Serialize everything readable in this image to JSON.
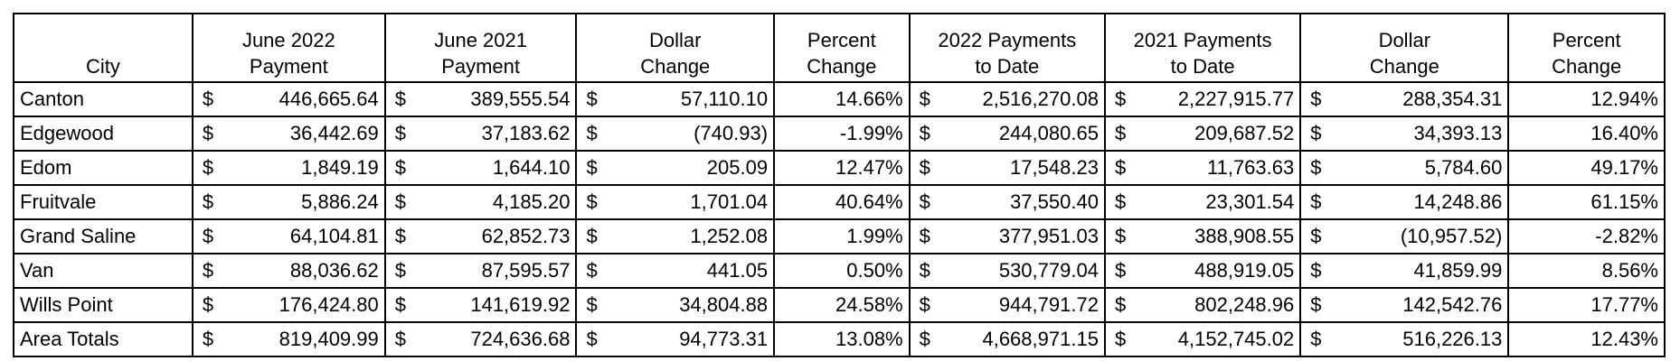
{
  "headers": {
    "city": "City",
    "june_2022": [
      "June 2022",
      "Payment"
    ],
    "june_2021": [
      "June 2021",
      "Payment"
    ],
    "dollar_change_1": [
      "Dollar",
      "Change"
    ],
    "percent_change_1": [
      "Percent",
      "Change"
    ],
    "payments_2022": [
      "2022 Payments",
      "to Date"
    ],
    "payments_2021": [
      "2021 Payments",
      "to Date"
    ],
    "dollar_change_2": [
      "Dollar",
      "Change"
    ],
    "percent_change_2": [
      "Percent",
      "Change"
    ]
  },
  "currency_symbol": "$",
  "rows": [
    {
      "city": "Canton",
      "june_2022": "446,665.64",
      "june_2021": "389,555.54",
      "dollar_change_1": "57,110.10",
      "percent_change_1": "14.66%",
      "payments_2022": "2,516,270.08",
      "payments_2021": "2,227,915.77",
      "dollar_change_2": "288,354.31",
      "percent_change_2": "12.94%"
    },
    {
      "city": "Edgewood",
      "june_2022": "36,442.69",
      "june_2021": "37,183.62",
      "dollar_change_1": "(740.93)",
      "percent_change_1": "-1.99%",
      "payments_2022": "244,080.65",
      "payments_2021": "209,687.52",
      "dollar_change_2": "34,393.13",
      "percent_change_2": "16.40%"
    },
    {
      "city": "Edom",
      "june_2022": "1,849.19",
      "june_2021": "1,644.10",
      "dollar_change_1": "205.09",
      "percent_change_1": "12.47%",
      "payments_2022": "17,548.23",
      "payments_2021": "11,763.63",
      "dollar_change_2": "5,784.60",
      "percent_change_2": "49.17%"
    },
    {
      "city": "Fruitvale",
      "june_2022": "5,886.24",
      "june_2021": "4,185.20",
      "dollar_change_1": "1,701.04",
      "percent_change_1": "40.64%",
      "payments_2022": "37,550.40",
      "payments_2021": "23,301.54",
      "dollar_change_2": "14,248.86",
      "percent_change_2": "61.15%"
    },
    {
      "city": "Grand Saline",
      "june_2022": "64,104.81",
      "june_2021": "62,852.73",
      "dollar_change_1": "1,252.08",
      "percent_change_1": "1.99%",
      "payments_2022": "377,951.03",
      "payments_2021": "388,908.55",
      "dollar_change_2": "(10,957.52)",
      "percent_change_2": "-2.82%"
    },
    {
      "city": "Van",
      "june_2022": "88,036.62",
      "june_2021": "87,595.57",
      "dollar_change_1": "441.05",
      "percent_change_1": "0.50%",
      "payments_2022": "530,779.04",
      "payments_2021": "488,919.05",
      "dollar_change_2": "41,859.99",
      "percent_change_2": "8.56%"
    },
    {
      "city": "Wills Point",
      "june_2022": "176,424.80",
      "june_2021": "141,619.92",
      "dollar_change_1": "34,804.88",
      "percent_change_1": "24.58%",
      "payments_2022": "944,791.72",
      "payments_2021": "802,248.96",
      "dollar_change_2": "142,542.76",
      "percent_change_2": "17.77%"
    },
    {
      "city": "Area Totals",
      "june_2022": "819,409.99",
      "june_2021": "724,636.68",
      "dollar_change_1": "94,773.31",
      "percent_change_1": "13.08%",
      "payments_2022": "4,668,971.15",
      "payments_2021": "4,152,745.02",
      "dollar_change_2": "516,226.13",
      "percent_change_2": "12.43%"
    }
  ]
}
